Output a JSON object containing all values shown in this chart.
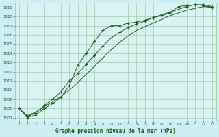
{
  "title": "Graphe pression niveau de la mer (hPa)",
  "background_color": "#cdeef5",
  "plot_bg_color": "#daf4f4",
  "grid_color": "#99bb99",
  "line_color": "#1a5c1a",
  "xlim": [
    0,
    23
  ],
  "ylim": [
    1007,
    1019
  ],
  "xticks": [
    0,
    1,
    2,
    3,
    4,
    5,
    6,
    7,
    8,
    9,
    10,
    11,
    12,
    13,
    14,
    15,
    16,
    17,
    18,
    19,
    20,
    21,
    22,
    23
  ],
  "yticks": [
    1007,
    1008,
    1009,
    1010,
    1011,
    1012,
    1013,
    1014,
    1015,
    1016,
    1017,
    1018,
    1019
  ],
  "series1_x": [
    0,
    1,
    2,
    3,
    4,
    5,
    6,
    7,
    8,
    9,
    10,
    11,
    12,
    13,
    14,
    15,
    16,
    17,
    18,
    19,
    20,
    21,
    22,
    23
  ],
  "series1_y": [
    1008.0,
    1007.0,
    1007.3,
    1008.0,
    1008.5,
    1009.2,
    1010.5,
    1012.7,
    1014.0,
    1015.3,
    1016.5,
    1017.0,
    1017.0,
    1017.3,
    1017.4,
    1017.6,
    1017.9,
    1018.1,
    1018.4,
    1019.1,
    1019.2,
    1019.3,
    1019.2,
    1019.0
  ],
  "series2_x": [
    0,
    1,
    2,
    3,
    4,
    5,
    6,
    7,
    8,
    9,
    10,
    11,
    12,
    13,
    14,
    15,
    16,
    17,
    18,
    19,
    20,
    21,
    22,
    23
  ],
  "series2_y": [
    1008.0,
    1007.1,
    1007.5,
    1008.3,
    1009.0,
    1009.8,
    1011.0,
    1011.8,
    1012.8,
    1013.8,
    1014.8,
    1015.7,
    1016.3,
    1016.8,
    1017.2,
    1017.5,
    1017.9,
    1018.2,
    1018.5,
    1018.8,
    1019.1,
    1019.3,
    1019.3,
    1019.1
  ],
  "series3_x": [
    0,
    1,
    2,
    3,
    4,
    5,
    6,
    7,
    8,
    9,
    10,
    11,
    12,
    13,
    14,
    15,
    16,
    17,
    18,
    19,
    20,
    21,
    22,
    23
  ],
  "series3_y": [
    1008.0,
    1007.2,
    1007.6,
    1008.2,
    1008.7,
    1009.3,
    1010.0,
    1010.8,
    1011.7,
    1012.6,
    1013.5,
    1014.4,
    1015.2,
    1015.9,
    1016.5,
    1016.9,
    1017.3,
    1017.7,
    1018.1,
    1018.4,
    1018.7,
    1018.9,
    1019.1,
    1019.0
  ]
}
